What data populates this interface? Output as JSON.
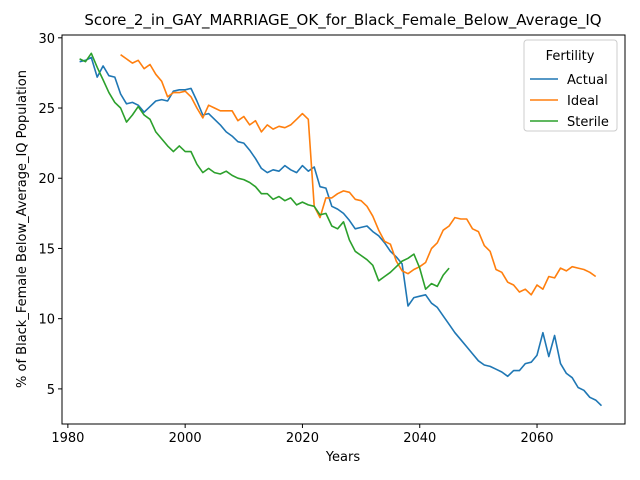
{
  "chart_data": {
    "type": "line",
    "title": "Score_2_in_GAY_MARRIAGE_OK_for_Black_Female_Below_Average_IQ",
    "xlabel": "Years",
    "ylabel": "% of Black_Female Below_Average_IQ Population",
    "xlim": [
      1979,
      2075
    ],
    "ylim": [
      2.5,
      30.2
    ],
    "xticks": [
      1980,
      2000,
      2020,
      2040,
      2060
    ],
    "yticks": [
      5,
      10,
      15,
      20,
      25,
      30
    ],
    "grid": false,
    "legend": {
      "title": "Fertility",
      "placement": "top-right"
    },
    "series": [
      {
        "name": "Actual",
        "color": "#1f77b4",
        "points": [
          [
            1982,
            28.3
          ],
          [
            1983,
            28.4
          ],
          [
            1984,
            28.6
          ],
          [
            1985,
            27.2
          ],
          [
            1986,
            28.0
          ],
          [
            1987,
            27.3
          ],
          [
            1988,
            27.2
          ],
          [
            1989,
            26.0
          ],
          [
            1990,
            25.3
          ],
          [
            1991,
            25.4
          ],
          [
            1992,
            25.2
          ],
          [
            1993,
            24.7
          ],
          [
            1994,
            25.1
          ],
          [
            1995,
            25.5
          ],
          [
            1996,
            25.6
          ],
          [
            1997,
            25.5
          ],
          [
            1998,
            26.2
          ],
          [
            1999,
            26.3
          ],
          [
            2000,
            26.3
          ],
          [
            2001,
            26.4
          ],
          [
            2002,
            25.5
          ],
          [
            2003,
            24.5
          ],
          [
            2004,
            24.6
          ],
          [
            2005,
            24.2
          ],
          [
            2006,
            23.8
          ],
          [
            2007,
            23.3
          ],
          [
            2008,
            23.0
          ],
          [
            2009,
            22.6
          ],
          [
            2010,
            22.5
          ],
          [
            2011,
            22.0
          ],
          [
            2012,
            21.4
          ],
          [
            2013,
            20.7
          ],
          [
            2014,
            20.4
          ],
          [
            2015,
            20.6
          ],
          [
            2016,
            20.5
          ],
          [
            2017,
            20.9
          ],
          [
            2018,
            20.6
          ],
          [
            2019,
            20.4
          ],
          [
            2020,
            20.9
          ],
          [
            2021,
            20.5
          ],
          [
            2022,
            20.8
          ],
          [
            2023,
            19.4
          ],
          [
            2024,
            19.3
          ],
          [
            2025,
            18.0
          ],
          [
            2026,
            17.8
          ],
          [
            2027,
            17.5
          ],
          [
            2028,
            17.0
          ],
          [
            2029,
            16.4
          ],
          [
            2030,
            16.5
          ],
          [
            2031,
            16.6
          ],
          [
            2032,
            16.2
          ],
          [
            2033,
            15.9
          ],
          [
            2034,
            15.4
          ],
          [
            2035,
            14.8
          ],
          [
            2036,
            14.4
          ],
          [
            2037,
            13.9
          ],
          [
            2038,
            10.9
          ],
          [
            2039,
            11.5
          ],
          [
            2040,
            11.6
          ],
          [
            2041,
            11.7
          ],
          [
            2042,
            11.1
          ],
          [
            2043,
            10.8
          ],
          [
            2044,
            10.2
          ],
          [
            2045,
            9.6
          ],
          [
            2046,
            9.0
          ],
          [
            2047,
            8.5
          ],
          [
            2048,
            8.0
          ],
          [
            2049,
            7.5
          ],
          [
            2050,
            7.0
          ],
          [
            2051,
            6.7
          ],
          [
            2052,
            6.6
          ],
          [
            2053,
            6.4
          ],
          [
            2054,
            6.2
          ],
          [
            2055,
            5.9
          ],
          [
            2056,
            6.3
          ],
          [
            2057,
            6.3
          ],
          [
            2058,
            6.8
          ],
          [
            2059,
            6.9
          ],
          [
            2060,
            7.4
          ],
          [
            2061,
            9.0
          ],
          [
            2062,
            7.3
          ],
          [
            2063,
            8.8
          ],
          [
            2064,
            6.8
          ],
          [
            2065,
            6.1
          ],
          [
            2066,
            5.8
          ],
          [
            2067,
            5.1
          ],
          [
            2068,
            4.9
          ],
          [
            2069,
            4.4
          ],
          [
            2070,
            4.2
          ],
          [
            2071,
            3.8
          ]
        ]
      },
      {
        "name": "Ideal",
        "color": "#ff7f0e",
        "points": [
          [
            1989,
            28.8
          ],
          [
            1990,
            28.5
          ],
          [
            1991,
            28.2
          ],
          [
            1992,
            28.4
          ],
          [
            1993,
            27.8
          ],
          [
            1994,
            28.1
          ],
          [
            1995,
            27.4
          ],
          [
            1996,
            26.9
          ],
          [
            1997,
            25.8
          ],
          [
            1998,
            26.1
          ],
          [
            1999,
            26.1
          ],
          [
            2000,
            26.2
          ],
          [
            2001,
            25.8
          ],
          [
            2002,
            25.0
          ],
          [
            2003,
            24.3
          ],
          [
            2004,
            25.2
          ],
          [
            2005,
            25.0
          ],
          [
            2006,
            24.8
          ],
          [
            2007,
            24.8
          ],
          [
            2008,
            24.8
          ],
          [
            2009,
            24.1
          ],
          [
            2010,
            24.4
          ],
          [
            2011,
            23.8
          ],
          [
            2012,
            24.1
          ],
          [
            2013,
            23.3
          ],
          [
            2014,
            23.8
          ],
          [
            2015,
            23.5
          ],
          [
            2016,
            23.7
          ],
          [
            2017,
            23.6
          ],
          [
            2018,
            23.8
          ],
          [
            2019,
            24.2
          ],
          [
            2020,
            24.6
          ],
          [
            2021,
            24.2
          ],
          [
            2022,
            18.0
          ],
          [
            2023,
            17.2
          ],
          [
            2024,
            18.6
          ],
          [
            2025,
            18.6
          ],
          [
            2026,
            18.9
          ],
          [
            2027,
            19.1
          ],
          [
            2028,
            19.0
          ],
          [
            2029,
            18.5
          ],
          [
            2030,
            18.4
          ],
          [
            2031,
            18.0
          ],
          [
            2032,
            17.3
          ],
          [
            2033,
            16.3
          ],
          [
            2034,
            15.5
          ],
          [
            2035,
            15.3
          ],
          [
            2036,
            14.1
          ],
          [
            2037,
            13.4
          ],
          [
            2038,
            13.2
          ],
          [
            2039,
            13.5
          ],
          [
            2040,
            13.7
          ],
          [
            2041,
            14.0
          ],
          [
            2042,
            15.0
          ],
          [
            2043,
            15.4
          ],
          [
            2044,
            16.3
          ],
          [
            2045,
            16.6
          ],
          [
            2046,
            17.2
          ],
          [
            2047,
            17.1
          ],
          [
            2048,
            17.1
          ],
          [
            2049,
            16.4
          ],
          [
            2050,
            16.2
          ],
          [
            2051,
            15.2
          ],
          [
            2052,
            14.8
          ],
          [
            2053,
            13.5
          ],
          [
            2054,
            13.3
          ],
          [
            2055,
            12.6
          ],
          [
            2056,
            12.4
          ],
          [
            2057,
            11.9
          ],
          [
            2058,
            12.1
          ],
          [
            2059,
            11.7
          ],
          [
            2060,
            12.4
          ],
          [
            2061,
            12.1
          ],
          [
            2062,
            13.0
          ],
          [
            2063,
            12.9
          ],
          [
            2064,
            13.6
          ],
          [
            2065,
            13.4
          ],
          [
            2066,
            13.7
          ],
          [
            2067,
            13.6
          ],
          [
            2068,
            13.5
          ],
          [
            2069,
            13.3
          ],
          [
            2070,
            13.0
          ]
        ]
      },
      {
        "name": "Sterile",
        "color": "#2ca02c",
        "points": [
          [
            1982,
            28.5
          ],
          [
            1983,
            28.3
          ],
          [
            1984,
            28.9
          ],
          [
            1985,
            27.9
          ],
          [
            1986,
            27.0
          ],
          [
            1987,
            26.1
          ],
          [
            1988,
            25.4
          ],
          [
            1989,
            25.0
          ],
          [
            1990,
            24.0
          ],
          [
            1991,
            24.5
          ],
          [
            1992,
            25.1
          ],
          [
            1993,
            24.5
          ],
          [
            1994,
            24.2
          ],
          [
            1995,
            23.3
          ],
          [
            1996,
            22.8
          ],
          [
            1997,
            22.3
          ],
          [
            1998,
            21.9
          ],
          [
            1999,
            22.3
          ],
          [
            2000,
            21.9
          ],
          [
            2001,
            21.9
          ],
          [
            2002,
            21.0
          ],
          [
            2003,
            20.4
          ],
          [
            2004,
            20.7
          ],
          [
            2005,
            20.4
          ],
          [
            2006,
            20.3
          ],
          [
            2007,
            20.5
          ],
          [
            2008,
            20.2
          ],
          [
            2009,
            20.0
          ],
          [
            2010,
            19.9
          ],
          [
            2011,
            19.7
          ],
          [
            2012,
            19.4
          ],
          [
            2013,
            18.9
          ],
          [
            2014,
            18.9
          ],
          [
            2015,
            18.5
          ],
          [
            2016,
            18.7
          ],
          [
            2017,
            18.4
          ],
          [
            2018,
            18.6
          ],
          [
            2019,
            18.1
          ],
          [
            2020,
            18.3
          ],
          [
            2021,
            18.1
          ],
          [
            2022,
            18.0
          ],
          [
            2023,
            17.4
          ],
          [
            2024,
            17.5
          ],
          [
            2025,
            16.6
          ],
          [
            2026,
            16.4
          ],
          [
            2027,
            16.9
          ],
          [
            2028,
            15.6
          ],
          [
            2029,
            14.8
          ],
          [
            2030,
            14.5
          ],
          [
            2031,
            14.2
          ],
          [
            2032,
            13.8
          ],
          [
            2033,
            12.7
          ],
          [
            2034,
            13.0
          ],
          [
            2035,
            13.3
          ],
          [
            2036,
            13.7
          ],
          [
            2037,
            14.1
          ],
          [
            2038,
            14.3
          ],
          [
            2039,
            14.6
          ],
          [
            2040,
            13.6
          ],
          [
            2041,
            12.1
          ],
          [
            2042,
            12.5
          ],
          [
            2043,
            12.3
          ],
          [
            2044,
            13.1
          ],
          [
            2045,
            13.6
          ]
        ]
      }
    ]
  }
}
